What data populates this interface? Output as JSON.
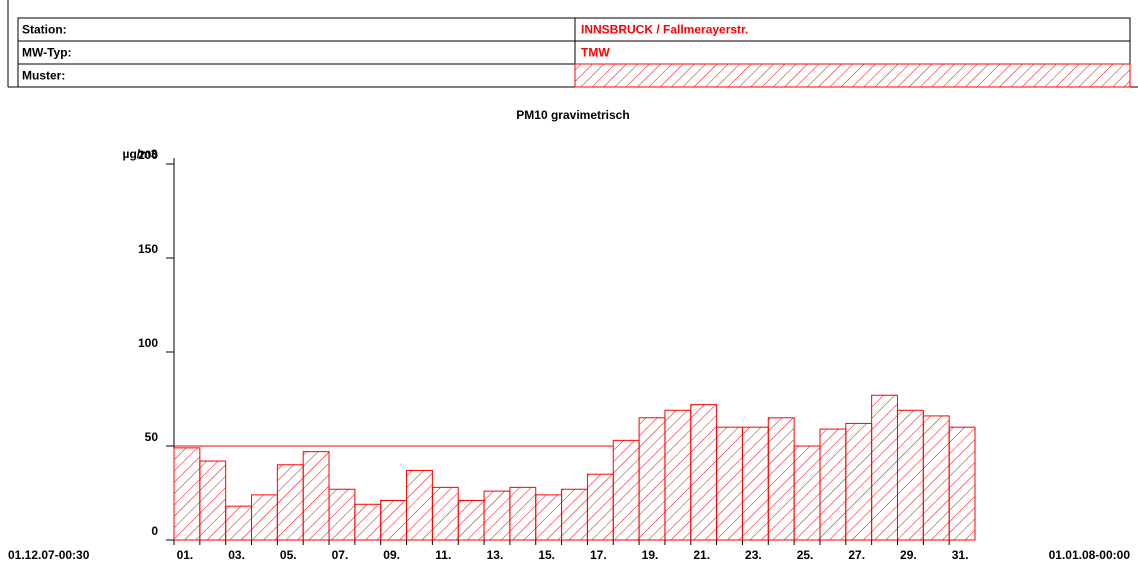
{
  "header": {
    "rows": [
      [
        "Station:",
        "INNSBRUCK / Fallmerayerstr."
      ],
      [
        "MW-Typ:",
        "TMW"
      ],
      [
        "Muster:",
        null
      ]
    ]
  },
  "chart_data": {
    "type": "bar",
    "title": "PM10 gravimetrisch",
    "y_label": "µg/m3",
    "x_start_label": "01.12.07-00:30",
    "x_end_label": "01.01.08-00:00",
    "categories": [
      "01.",
      null,
      "03.",
      null,
      "05.",
      null,
      "07.",
      null,
      "09.",
      null,
      "11.",
      null,
      "13.",
      null,
      "15.",
      null,
      "17.",
      null,
      "19.",
      null,
      "21.",
      null,
      "23.",
      null,
      "25.",
      null,
      "27.",
      null,
      "29.",
      null,
      "31."
    ],
    "values": [
      49,
      42,
      18,
      24,
      40,
      47,
      27,
      19,
      21,
      37,
      28,
      21,
      26,
      28,
      24,
      27,
      35,
      53,
      65,
      69,
      72,
      60,
      60,
      65,
      50,
      59,
      62,
      77,
      69,
      66,
      60
    ],
    "color": "#ff0000",
    "threshold": 50,
    "ylim": [
      0,
      200
    ],
    "yticks": [
      0,
      50,
      100,
      150,
      200
    ]
  }
}
